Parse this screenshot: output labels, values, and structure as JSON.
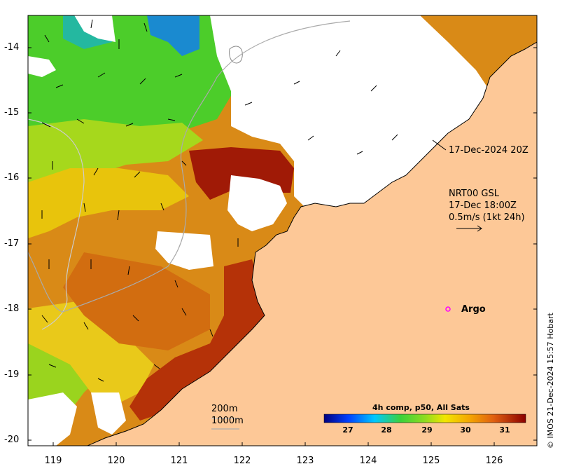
{
  "map": {
    "x_axis_ticks": [
      "119",
      "120",
      "121",
      "122",
      "123",
      "124",
      "125",
      "126"
    ],
    "y_axis_ticks": [
      "-14",
      "-15",
      "-16",
      "-17",
      "-18",
      "-19",
      "-20"
    ],
    "timestamp_label": "17-Dec-2024 20Z",
    "current_legend": {
      "line1": "NRT00 GSL",
      "line2": "17-Dec 18:00Z",
      "line3": "0.5m/s (1kt 24h)"
    },
    "argo_label": "Argo",
    "isobath_labels": [
      "200m",
      "1000m"
    ],
    "colorbar": {
      "title": "4h comp, p50, All Sats",
      "ticks": [
        "27",
        "28",
        "29",
        "30",
        "31"
      ]
    },
    "credit": "© IMOS 21-Dec-2024 15:57 Hobart",
    "colors": {
      "land": "#fdc897",
      "argo_marker": "#ff00ff",
      "warm": "#a01a06",
      "cool": "#1a44c8"
    }
  }
}
